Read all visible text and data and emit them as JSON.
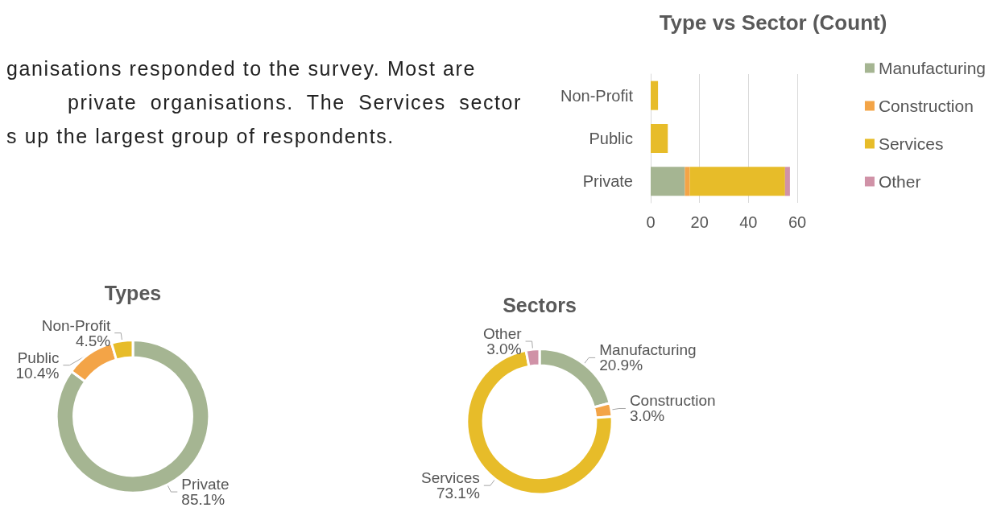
{
  "chart_data": [
    {
      "type": "other",
      "annotations": [
        "ganisations responded to the survey. Most are",
        "private organisations. The Services sector",
        "s up the largest group of respondents."
      ]
    },
    {
      "type": "bar",
      "title": "Type vs Sector (Count)",
      "orientation": "horizontal",
      "stacked": true,
      "categories": [
        "Non-Profit",
        "Public",
        "Private"
      ],
      "series": [
        {
          "name": "Manufacturing",
          "color": "#a5b592",
          "values": [
            null,
            null,
            14
          ]
        },
        {
          "name": "Construction",
          "color": "#f3a447",
          "values": [
            null,
            null,
            2
          ]
        },
        {
          "name": "Services",
          "color": "#e7bc29",
          "values": [
            3,
            7,
            39
          ]
        },
        {
          "name": "Other",
          "color": "#d092a7",
          "values": [
            null,
            null,
            2
          ]
        }
      ],
      "xlim": [
        0,
        60
      ],
      "xticks": [
        0,
        20,
        40,
        60
      ],
      "grid": "x",
      "legend": "right"
    },
    {
      "type": "donut",
      "title": "Types",
      "categories": [
        "Private",
        "Public",
        "Non-Profit"
      ],
      "values": [
        85.1,
        10.4,
        4.5
      ],
      "colors": [
        "#a5b592",
        "#f3a447",
        "#e7bc29"
      ],
      "value_labels": [
        "85.1%",
        "10.4%",
        "4.5%"
      ]
    },
    {
      "type": "donut",
      "title": "Sectors",
      "categories": [
        "Manufacturing",
        "Construction",
        "Services",
        "Other"
      ],
      "values": [
        20.9,
        3.0,
        73.1,
        3.0
      ],
      "colors": [
        "#a5b592",
        "#f3a447",
        "#e7bc29",
        "#d092a7"
      ],
      "value_labels": [
        "20.9%",
        "3.0%",
        "73.1%",
        "3.0%"
      ]
    }
  ]
}
